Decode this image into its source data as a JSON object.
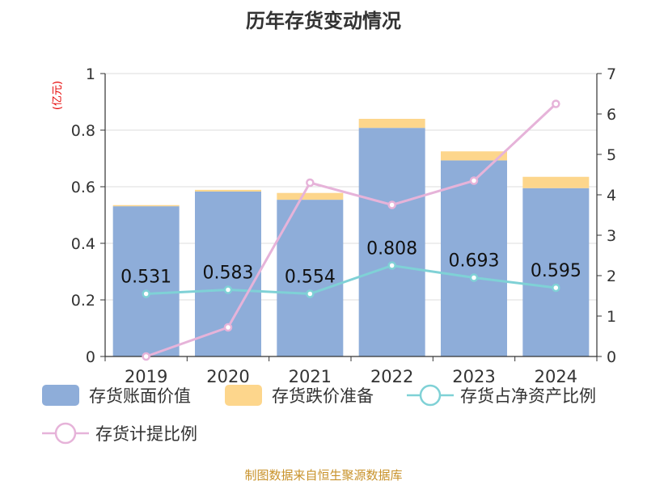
{
  "chart_data": {
    "type": "bar",
    "title": "历年存货变动情况",
    "unit_label": "(亿元)",
    "categories": [
      "2019",
      "2020",
      "2021",
      "2022",
      "2023",
      "2024"
    ],
    "y_left": {
      "min": 0,
      "max": 1,
      "ticks": [
        "0",
        "0.2",
        "0.4",
        "0.6",
        "0.8",
        "1"
      ]
    },
    "y_right": {
      "min": 0,
      "max": 7,
      "ticks": [
        "0",
        "1",
        "2",
        "3",
        "4",
        "5",
        "6",
        "7"
      ]
    },
    "grid": true,
    "legend_position": "bottom",
    "series": [
      {
        "name": "存货账面价值",
        "kind": "bar",
        "stack": "inv",
        "axis": "left",
        "color": "#8eadd9",
        "values": [
          0.531,
          0.583,
          0.554,
          0.808,
          0.693,
          0.595
        ]
      },
      {
        "name": "存货跌价准备",
        "kind": "bar",
        "stack": "inv",
        "axis": "left",
        "color": "#fdd68c",
        "values": [
          0.004,
          0.006,
          0.024,
          0.032,
          0.032,
          0.04
        ]
      },
      {
        "name": "存货占净资产比例",
        "kind": "line",
        "axis": "right",
        "color": "#7fd1d6",
        "values": [
          1.55,
          1.65,
          1.55,
          2.25,
          1.95,
          1.7
        ]
      },
      {
        "name": "存货计提比例",
        "kind": "line",
        "axis": "right",
        "color": "#e6b3d9",
        "values": [
          0.0,
          0.72,
          4.3,
          3.75,
          4.35,
          6.25
        ]
      }
    ],
    "data_labels": [
      "0.531",
      "0.583",
      "0.554",
      "0.808",
      "0.693",
      "0.595"
    ]
  },
  "footer": {
    "source": "制图数据来自恒生聚源数据库"
  }
}
